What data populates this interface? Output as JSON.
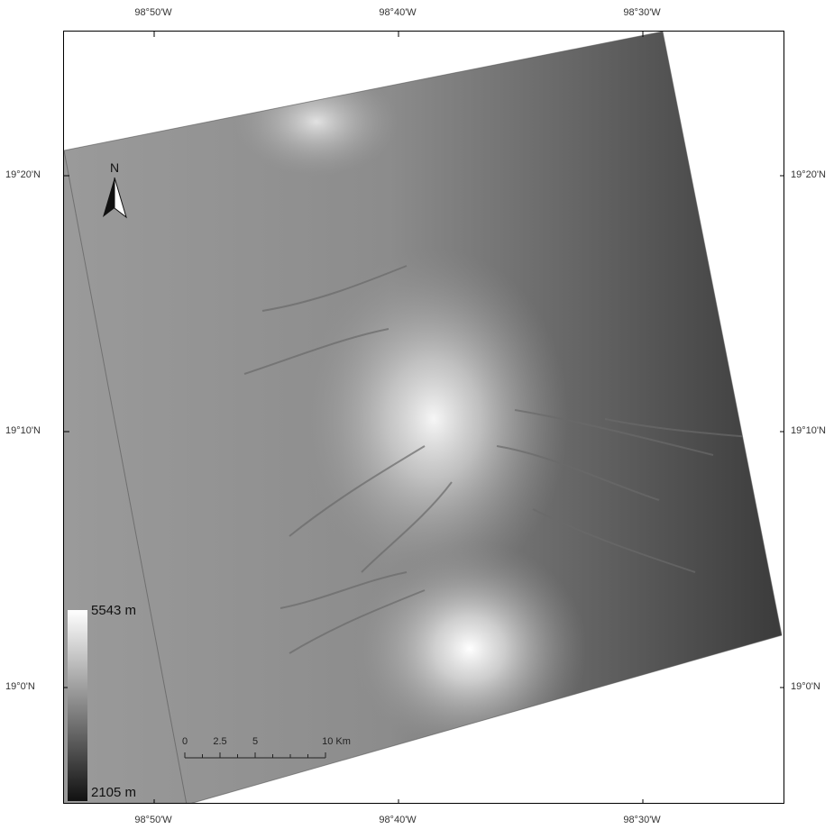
{
  "graticule": {
    "longitude_labels": [
      "98°50'W",
      "98°40'W",
      "98°30'W"
    ],
    "latitude_labels": [
      "19°20'N",
      "19°10'N",
      "19°0'N"
    ]
  },
  "legend": {
    "max_label": "5543 m",
    "min_label": "2105 m",
    "max_color": "#ffffff",
    "min_color": "#111111"
  },
  "north_arrow": {
    "letter": "N",
    "icon": "north-arrow-icon"
  },
  "scale_bar": {
    "labels": [
      "0",
      "2.5",
      "5",
      "10 Km"
    ],
    "values_km": [
      0,
      2.5,
      5,
      10
    ]
  },
  "colors": {
    "terrain_light": "#f2f2f2",
    "terrain_mid": "#8a8a8a",
    "terrain_dark": "#3a3a3a"
  }
}
